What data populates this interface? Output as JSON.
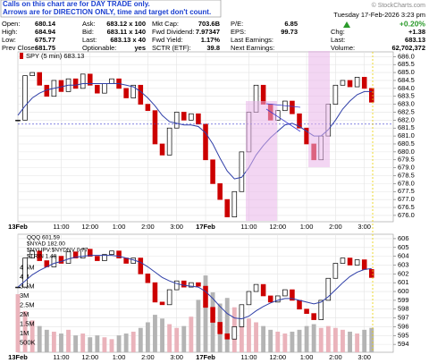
{
  "note_lines": [
    "Calls on this chart are for DAY TRADE only.",
    "Arrows are for DIRECTION ONLY, time and target don't count."
  ],
  "brand": "© StockCharts.com",
  "datetime": "Tuesday 17-Feb-2026 3:23 pm",
  "info": {
    "rows": [
      [
        "Open:",
        "680.14",
        "Ask:",
        "683.12 x 100",
        "Mkt Cap:",
        "703.6B",
        "P/E:",
        "6.85"
      ],
      [
        "High:",
        "684.94",
        "Bid:",
        "683.11 x 140",
        "Fwd Dividend:",
        "7.97347",
        "EPS:",
        "99.73"
      ],
      [
        "Low:",
        "675.77",
        "Last:",
        "683.13 x 40",
        "Fwd Yield:",
        "1.17%",
        "Last Earnings:"
      ],
      [
        "Prev Close:",
        "681.75",
        "Optionable:",
        "yes",
        "SCTR (ETF):",
        "39.8",
        "Next Earnings:"
      ]
    ]
  },
  "quote": {
    "change_pct": "+0.20%",
    "rows": [
      [
        "Chg:",
        "+1.38"
      ],
      [
        "Last:",
        "683.13"
      ],
      [
        "Volume:",
        "62,702,372"
      ]
    ]
  },
  "chart_data": [
    {
      "type": "candlestick",
      "title": "SPY (5 min) 683.13",
      "x": [
        0,
        0.25,
        0.5,
        0.75,
        1,
        1.25,
        1.5,
        1.75,
        2,
        2.25,
        2.5,
        2.75,
        3,
        3.25,
        3.5,
        3.75,
        4,
        4.25,
        4.5,
        4.75,
        5,
        5.25,
        5.5,
        5.75,
        6,
        6.25,
        6.5,
        6.75,
        7,
        7.25,
        7.5,
        7.75,
        8,
        8.25,
        8.5,
        8.75,
        9,
        9.25,
        9.5,
        9.75,
        10,
        10.25,
        10.5,
        10.75,
        11,
        11.25,
        11.5,
        11.75,
        12,
        12.25
      ],
      "values": [
        682.0,
        684.8,
        685.0,
        684.2,
        683.5,
        684.5,
        683.8,
        684.6,
        684.0,
        684.9,
        684.2,
        683.7,
        684.3,
        684.6,
        684.0,
        683.4,
        684.2,
        683.0,
        682.6,
        680.5,
        679.8,
        681.5,
        682.5,
        682.0,
        682.4,
        681.75,
        679.5,
        678.0,
        677.0,
        675.9,
        677.5,
        680.0,
        682.5,
        684.2,
        683.0,
        682.0,
        682.6,
        683.2,
        682.4,
        681.5,
        680.5,
        679.5,
        681.0,
        683.0,
        684.2,
        684.5,
        684.1,
        684.7,
        684.0,
        683.13
      ],
      "ma_values": [
        682.3,
        682.9,
        683.4,
        683.7,
        683.9,
        684.0,
        684.1,
        684.2,
        684.2,
        684.3,
        684.3,
        684.3,
        684.3,
        684.3,
        684.3,
        684.2,
        684.1,
        683.8,
        683.4,
        682.9,
        682.3,
        681.9,
        681.8,
        681.7,
        681.7,
        681.6,
        681.2,
        680.5,
        679.6,
        678.8,
        678.3,
        678.4,
        679.0,
        679.8,
        680.4,
        680.9,
        681.3,
        681.7,
        681.8,
        681.6,
        681.3,
        681.0,
        681.0,
        681.4,
        682.0,
        682.7,
        683.2,
        683.6,
        683.8,
        683.8
      ],
      "ma_color": "#2f3fa8",
      "up_color": "#000000",
      "down_color": "#cc0000",
      "grid": true,
      "xlim": [
        0,
        13
      ],
      "xticks": [
        {
          "value": 0,
          "label": "13Feb"
        },
        {
          "value": 1.5,
          "label": "11:00"
        },
        {
          "value": 2.5,
          "label": "12:00"
        },
        {
          "value": 3.5,
          "label": "1:00"
        },
        {
          "value": 4.5,
          "label": "2:00"
        },
        {
          "value": 5.5,
          "label": "3:00"
        },
        {
          "value": 6.5,
          "label": "17Feb"
        },
        {
          "value": 8,
          "label": "11:00"
        },
        {
          "value": 9,
          "label": "12:00"
        },
        {
          "value": 10,
          "label": "1:00"
        },
        {
          "value": 11,
          "label": "2:00"
        },
        {
          "value": 12,
          "label": "3:00"
        }
      ],
      "ylim": [
        675.6,
        686.3
      ],
      "yticks": [
        {
          "value": 676,
          "label": "676.0"
        },
        {
          "value": 676.5,
          "label": "676.5"
        },
        {
          "value": 677,
          "label": "677.0"
        },
        {
          "value": 677.5,
          "label": "677.5"
        },
        {
          "value": 678,
          "label": "678.0"
        },
        {
          "value": 678.5,
          "label": "678.5"
        },
        {
          "value": 679,
          "label": "679.0"
        },
        {
          "value": 679.5,
          "label": "679.5"
        },
        {
          "value": 680,
          "label": "680.0"
        },
        {
          "value": 680.5,
          "label": "680.5"
        },
        {
          "value": 681,
          "label": "681.0"
        },
        {
          "value": 681.5,
          "label": "681.5"
        },
        {
          "value": 682,
          "label": "682.0"
        },
        {
          "value": 682.5,
          "label": "682.5"
        },
        {
          "value": 683,
          "label": "683.0"
        },
        {
          "value": 683.5,
          "label": "683.5"
        },
        {
          "value": 684,
          "label": "684.0"
        },
        {
          "value": 684.5,
          "label": "684.5"
        },
        {
          "value": 685,
          "label": "685.0"
        },
        {
          "value": 685.5,
          "label": "685.5"
        },
        {
          "value": 686,
          "label": "686.0"
        }
      ]
    },
    {
      "type": "candlestick",
      "legend": [
        "QQQ 601.59",
        "$NYAD 182.00",
        "$NYUPV:$NYDNV 0.77",
        "$TRIN 1.48"
      ],
      "x": [
        0,
        0.25,
        0.5,
        0.75,
        1,
        1.25,
        1.5,
        1.75,
        2,
        2.25,
        2.5,
        2.75,
        3,
        3.25,
        3.5,
        3.75,
        4,
        4.25,
        4.5,
        4.75,
        5,
        5.25,
        5.5,
        5.75,
        6,
        6.25,
        6.5,
        6.75,
        7,
        7.25,
        7.5,
        7.75,
        8,
        8.25,
        8.5,
        8.75,
        9,
        9.25,
        9.5,
        9.75,
        10,
        10.25,
        10.5,
        10.75,
        11,
        11.25,
        11.5,
        11.75,
        12,
        12.25
      ],
      "values": [
        600.5,
        603.8,
        604.6,
        603.5,
        602.8,
        604.0,
        603.2,
        604.5,
        603.8,
        604.8,
        604.0,
        603.5,
        604.2,
        604.6,
        603.8,
        603.2,
        603.8,
        602.0,
        601.0,
        598.8,
        598.5,
        600.2,
        601.2,
        600.5,
        601.0,
        600.6,
        598.2,
        596.5,
        595.2,
        594.6,
        596.0,
        598.5,
        600.0,
        600.8,
        599.5,
        598.8,
        599.5,
        600.2,
        599.0,
        598.0,
        597.5,
        596.8,
        599.0,
        601.5,
        603.2,
        603.8,
        603.0,
        603.6,
        602.5,
        601.59
      ],
      "ma_values": [
        600.5,
        601.2,
        601.9,
        602.4,
        602.8,
        603.2,
        603.4,
        603.7,
        603.9,
        604.0,
        604.1,
        604.1,
        604.1,
        604.1,
        604.0,
        603.8,
        603.6,
        603.3,
        602.8,
        602.2,
        601.6,
        601.2,
        600.9,
        600.7,
        600.6,
        600.5,
        600.0,
        599.2,
        598.3,
        597.5,
        597.0,
        596.9,
        597.2,
        597.8,
        598.3,
        598.7,
        599.0,
        599.2,
        599.2,
        599.0,
        598.8,
        598.6,
        598.8,
        599.4,
        600.2,
        601.0,
        601.7,
        602.2,
        602.5,
        602.6
      ],
      "ma_color": "#2f3fa8",
      "up_color": "#000000",
      "down_color": "#cc0000",
      "grid": true,
      "xlim": [
        0,
        13
      ],
      "xticks": [
        {
          "value": 0,
          "label": "13Feb"
        },
        {
          "value": 1.5,
          "label": "11:00"
        },
        {
          "value": 2.5,
          "label": "12:00"
        },
        {
          "value": 3.5,
          "label": "1:00"
        },
        {
          "value": 4.5,
          "label": "2:00"
        },
        {
          "value": 5.5,
          "label": "3:00"
        },
        {
          "value": 6.5,
          "label": "17Feb"
        },
        {
          "value": 8,
          "label": "11:00"
        },
        {
          "value": 9,
          "label": "12:00"
        },
        {
          "value": 10,
          "label": "1:00"
        },
        {
          "value": 11,
          "label": "2:00"
        },
        {
          "value": 12,
          "label": "3:00"
        }
      ],
      "ylim": [
        593.1,
        606.5
      ],
      "yticks": [
        594,
        595,
        596,
        597,
        598,
        599,
        600,
        601,
        602,
        603,
        604,
        605,
        606
      ],
      "volume": {
        "up_color": "#eab3bb",
        "down_color": "#b4b4b4",
        "values": [
          3100000,
          2200000,
          1700000,
          1400000,
          1200000,
          1100000,
          1000000,
          1200000,
          900000,
          1000000,
          800000,
          900000,
          800000,
          700000,
          900000,
          1000000,
          1100000,
          1300000,
          1600000,
          2000000,
          1800000,
          1500000,
          1300000,
          1400000,
          1900000,
          2800000,
          4100000,
          3200000,
          2600000,
          2900000,
          2400000,
          2100000,
          1800000,
          1600000,
          1400000,
          1200000,
          1100000,
          1000000,
          1100000,
          1200000,
          1400000,
          1500000,
          1300000,
          1400000,
          1300000,
          1200000,
          1100000,
          1000000,
          1200000,
          1300000
        ],
        "ylim": [
          0,
          6300000
        ],
        "yticks": [
          {
            "value": 500000,
            "label": "500K"
          },
          {
            "value": 1000000,
            "label": "1M"
          },
          {
            "value": 1500000,
            "label": "1.5M"
          },
          {
            "value": 2000000,
            "label": "2M"
          },
          {
            "value": 2500000,
            "label": "2.5M"
          },
          {
            "value": 3000000,
            "label": "3M"
          },
          {
            "value": 3500000,
            "label": "3.5M"
          },
          {
            "value": 4000000,
            "label": "4M"
          },
          {
            "value": 4500000,
            "label": "4.5M"
          }
        ]
      }
    }
  ]
}
